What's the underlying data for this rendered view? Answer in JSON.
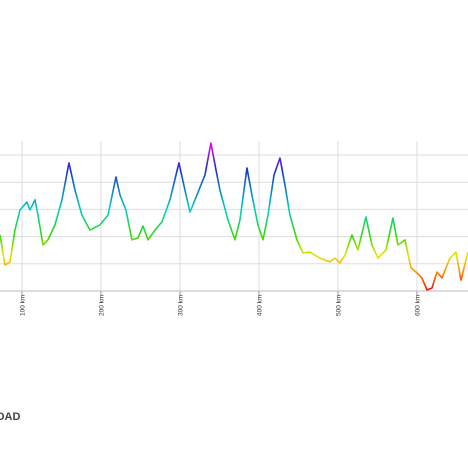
{
  "chart_data": {
    "type": "line",
    "x": [
      72.2,
      78.5,
      84.8,
      91.1,
      97.5,
      106.3,
      110.1,
      116.5,
      120.3,
      126.6,
      132.9,
      141.8,
      150.6,
      159.5,
      167.1,
      175.9,
      186.1,
      198.7,
      208.9,
      219,
      224.1,
      231.6,
      239.2,
      246.8,
      253.2,
      259.5,
      268.4,
      277.2,
      287.3,
      298.7,
      306.3,
      312.7,
      321.5,
      331.6,
      339.2,
      345.6,
      350.6,
      360.8,
      369.6,
      375.9,
      384.8,
      391.1,
      398.7,
      405.1,
      411.4,
      419,
      426.6,
      432.9,
      439.2,
      448.1,
      455.7,
      464.6,
      477.2,
      489.9,
      496.2,
      502.5,
      508.9,
      517.7,
      525.3,
      535.4,
      543,
      550.6,
      560.8,
      569.6,
      575.9,
      584.8,
      592.4,
      598.7,
      606.3,
      612.7,
      619,
      625.3,
      631.6,
      641.8,
      649.4,
      655.7,
      664.6
    ],
    "values": [
      2.06,
      0.96,
      1.07,
      2.24,
      2.98,
      3.27,
      2.98,
      3.35,
      2.79,
      1.69,
      1.88,
      2.43,
      3.35,
      4.71,
      3.71,
      2.79,
      2.24,
      2.43,
      2.79,
      4.19,
      3.53,
      2.98,
      1.88,
      1.95,
      2.39,
      1.88,
      2.24,
      2.54,
      3.35,
      4.71,
      3.71,
      2.9,
      3.53,
      4.26,
      5.44,
      4.45,
      3.71,
      2.61,
      1.88,
      2.61,
      4.52,
      3.53,
      2.43,
      1.88,
      2.79,
      4.26,
      4.89,
      3.9,
      2.79,
      1.88,
      1.4,
      1.43,
      1.21,
      1.07,
      1.21,
      1.03,
      1.32,
      2.06,
      1.51,
      2.72,
      1.69,
      1.21,
      1.51,
      2.68,
      1.69,
      1.88,
      0.85,
      0.7,
      0.48,
      0.04,
      0.11,
      0.7,
      0.48,
      1.21,
      1.43,
      0.4,
      1.43
    ],
    "xlim": [
      72.2,
      664.6
    ],
    "ylim": [
      0,
      5.5
    ],
    "xticks": [
      {
        "value": 100,
        "label": "100 km"
      },
      {
        "value": 200,
        "label": "200 km"
      },
      {
        "value": 300,
        "label": "300 km"
      },
      {
        "value": 400,
        "label": "400 km"
      },
      {
        "value": 500,
        "label": "500 km"
      },
      {
        "value": 600,
        "label": "600 km"
      }
    ],
    "yticks": [
      0,
      1,
      2,
      3,
      4,
      5
    ],
    "grid": true,
    "color_stops": [
      {
        "value": 0,
        "color": "#ff0000"
      },
      {
        "value": 0.7,
        "color": "#ff8c00"
      },
      {
        "value": 1.3,
        "color": "#e6e600"
      },
      {
        "value": 2,
        "color": "#33dd00"
      },
      {
        "value": 3,
        "color": "#00d0c0"
      },
      {
        "value": 4.5,
        "color": "#1a2cd0"
      },
      {
        "value": 5.5,
        "color": "#ff00ff"
      }
    ]
  },
  "footer": {
    "logo": "OAD"
  }
}
